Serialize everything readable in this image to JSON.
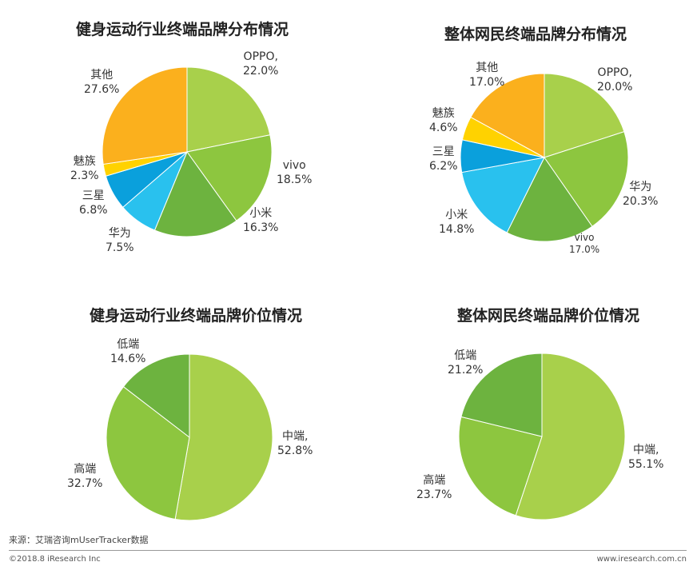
{
  "chart_data": [
    {
      "type": "pie",
      "title": "健身运动行业终端品牌分布情况",
      "slices": [
        {
          "name": "OPPO,",
          "label": "OPPO,",
          "value": 22.0,
          "value_text": "22.0%",
          "color": "#a8d04b"
        },
        {
          "name": "vivo",
          "label": "vivo",
          "value": 18.5,
          "value_text": "18.5%",
          "color": "#8dc63f"
        },
        {
          "name": "小米",
          "label": "小米",
          "value": 16.3,
          "value_text": "16.3%",
          "color": "#6db33f"
        },
        {
          "name": "华为",
          "label": "华为",
          "value": 7.5,
          "value_text": "7.5%",
          "color": "#29c1ee"
        },
        {
          "name": "三星",
          "label": "三星",
          "value": 6.8,
          "value_text": "6.8%",
          "color": "#0aa0dc"
        },
        {
          "name": "魅族",
          "label": "魅族",
          "value": 2.3,
          "value_text": "2.3%",
          "color": "#ffd200"
        },
        {
          "name": "其他",
          "label": "其他",
          "value": 27.6,
          "value_text": "27.6%",
          "color": "#fbb01d"
        }
      ]
    },
    {
      "type": "pie",
      "title": "整体网民终端品牌分布情况",
      "slices": [
        {
          "name": "OPPO,",
          "label": "OPPO,",
          "value": 20.0,
          "value_text": "20.0%",
          "color": "#a8d04b"
        },
        {
          "name": "华为",
          "label": "华为",
          "value": 20.3,
          "value_text": "20.3%",
          "color": "#8dc63f"
        },
        {
          "name": "vivo",
          "label": "vivo",
          "value": 17.0,
          "value_text": "17.0%",
          "color": "#6db33f"
        },
        {
          "name": "小米",
          "label": "小米",
          "value": 14.8,
          "value_text": "14.8%",
          "color": "#29c1ee"
        },
        {
          "name": "三星",
          "label": "三星",
          "value": 6.2,
          "value_text": "6.2%",
          "color": "#0aa0dc"
        },
        {
          "name": "魅族",
          "label": "魅族",
          "value": 4.6,
          "value_text": "4.6%",
          "color": "#ffd200"
        },
        {
          "name": "其他",
          "label": "其他",
          "value": 17.0,
          "value_text": "17.0%",
          "color": "#fbb01d"
        }
      ]
    },
    {
      "type": "pie",
      "title": "健身运动行业终端品牌价位情况",
      "slices": [
        {
          "name": "中端",
          "label": "中端,",
          "value": 52.8,
          "value_text": "52.8%",
          "color": "#a8d04b"
        },
        {
          "name": "高端",
          "label": "高端",
          "value": 32.7,
          "value_text": "32.7%",
          "color": "#8dc63f"
        },
        {
          "name": "低端",
          "label": "低端",
          "value": 14.6,
          "value_text": "14.6%",
          "color": "#6db33f"
        }
      ]
    },
    {
      "type": "pie",
      "title": "整体网民终端品牌价位情况",
      "slices": [
        {
          "name": "中端",
          "label": "中端,",
          "value": 55.1,
          "value_text": "55.1%",
          "color": "#a8d04b"
        },
        {
          "name": "高端",
          "label": "高端",
          "value": 23.7,
          "value_text": "23.7%",
          "color": "#8dc63f"
        },
        {
          "name": "低端",
          "label": "低端",
          "value": 21.2,
          "value_text": "21.2%",
          "color": "#6db33f"
        }
      ]
    }
  ],
  "footer": {
    "source": "来源：艾瑞咨询mUserTracker数据",
    "copyright": "©2018.8 iResearch Inc",
    "url": "www.iresearch.com.cn"
  }
}
